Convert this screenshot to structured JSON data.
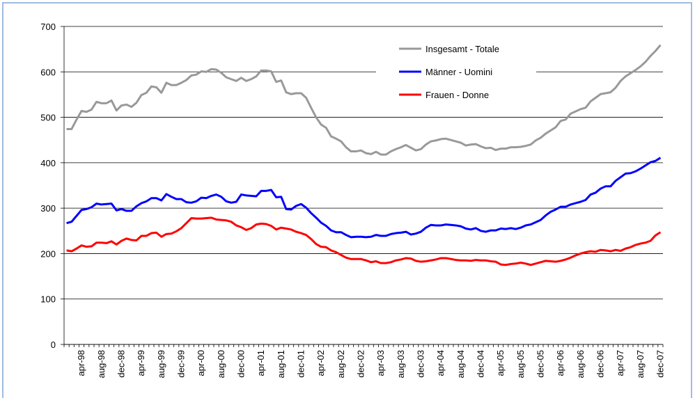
{
  "chart_data": {
    "type": "line",
    "categories": [
      null,
      null,
      null,
      "apr-98",
      null,
      null,
      null,
      "aug-98",
      null,
      null,
      null,
      "dec-98",
      null,
      null,
      null,
      "apr-99",
      null,
      null,
      null,
      "aug-99",
      null,
      null,
      null,
      "dec-99",
      null,
      null,
      null,
      "apr-00",
      null,
      null,
      null,
      "aug-00",
      null,
      null,
      null,
      "dec-00",
      null,
      null,
      null,
      "apr-01",
      null,
      null,
      null,
      "aug-01",
      null,
      null,
      null,
      "dec-01",
      null,
      null,
      null,
      "apr-02",
      null,
      null,
      null,
      "aug-02",
      null,
      null,
      null,
      "dec-02",
      null,
      null,
      null,
      "apr-03",
      null,
      null,
      null,
      "aug-03",
      null,
      null,
      null,
      "dec-03",
      null,
      null,
      null,
      "apr-04",
      null,
      null,
      null,
      "aug-04",
      null,
      null,
      null,
      "dec-04",
      null,
      null,
      null,
      "apr-05",
      null,
      null,
      null,
      "aug-05",
      null,
      null,
      null,
      "dec-05",
      null,
      null,
      null,
      "apr-06",
      null,
      null,
      null,
      "aug-06",
      null,
      null,
      null,
      "dec-06",
      null,
      null,
      null,
      "apr-07",
      null,
      null,
      null,
      "aug-07",
      null,
      null,
      null,
      "dec-07"
    ],
    "series": [
      {
        "name": "Insgesamt - Totale",
        "color": "#999999",
        "values": [
          474,
          474,
          495,
          514,
          512,
          517,
          534,
          531,
          531,
          537,
          515,
          526,
          528,
          523,
          532,
          549,
          554,
          568,
          566,
          554,
          576,
          571,
          571,
          576,
          582,
          592,
          594,
          601,
          600,
          606,
          605,
          598,
          588,
          584,
          580,
          587,
          580,
          584,
          590,
          603,
          603,
          601,
          578,
          581,
          555,
          551,
          553,
          553,
          543,
          521,
          500,
          484,
          477,
          458,
          453,
          447,
          434,
          425,
          425,
          427,
          421,
          419,
          424,
          418,
          418,
          425,
          430,
          434,
          439,
          433,
          427,
          430,
          440,
          447,
          449,
          452,
          453,
          450,
          447,
          444,
          438,
          440,
          441,
          436,
          432,
          433,
          428,
          431,
          431,
          434,
          434,
          435,
          437,
          440,
          449,
          455,
          464,
          471,
          478,
          492,
          495,
          508,
          513,
          518,
          521,
          535,
          543,
          551,
          553,
          555,
          565,
          580,
          590,
          597,
          604,
          612,
          622,
          635,
          646,
          659
        ]
      },
      {
        "name": "Männer - Uomini",
        "color": "#0000ff",
        "values": [
          267,
          270,
          283,
          296,
          298,
          302,
          310,
          308,
          309,
          310,
          295,
          298,
          294,
          294,
          304,
          311,
          315,
          322,
          322,
          317,
          331,
          325,
          320,
          320,
          313,
          312,
          315,
          323,
          322,
          327,
          330,
          325,
          315,
          312,
          314,
          330,
          328,
          327,
          326,
          338,
          338,
          340,
          324,
          325,
          298,
          297,
          305,
          309,
          301,
          289,
          279,
          268,
          261,
          251,
          247,
          247,
          241,
          236,
          237,
          237,
          236,
          237,
          241,
          239,
          239,
          243,
          245,
          246,
          248,
          242,
          244,
          248,
          257,
          263,
          262,
          262,
          264,
          263,
          262,
          260,
          255,
          253,
          256,
          250,
          248,
          251,
          251,
          255,
          254,
          256,
          254,
          257,
          262,
          264,
          269,
          274,
          284,
          292,
          297,
          303,
          303,
          308,
          311,
          314,
          318,
          330,
          334,
          343,
          348,
          348,
          360,
          368,
          376,
          377,
          381,
          387,
          394,
          401,
          404,
          411
        ]
      },
      {
        "name": "Frauen - Donne",
        "color": "#ff0000",
        "values": [
          207,
          205,
          211,
          218,
          215,
          216,
          224,
          224,
          223,
          227,
          220,
          228,
          233,
          230,
          229,
          239,
          239,
          245,
          246,
          237,
          243,
          244,
          249,
          256,
          267,
          278,
          277,
          277,
          278,
          279,
          275,
          274,
          273,
          270,
          262,
          258,
          252,
          256,
          264,
          266,
          265,
          261,
          253,
          257,
          255,
          253,
          248,
          245,
          241,
          232,
          221,
          215,
          214,
          207,
          203,
          197,
          191,
          188,
          188,
          188,
          185,
          181,
          183,
          179,
          179,
          181,
          185,
          187,
          190,
          189,
          184,
          182,
          183,
          185,
          187,
          190,
          190,
          188,
          186,
          185,
          185,
          184,
          186,
          185,
          185,
          183,
          182,
          176,
          175,
          177,
          178,
          180,
          178,
          175,
          178,
          181,
          184,
          183,
          182,
          184,
          187,
          191,
          196,
          200,
          203,
          205,
          204,
          208,
          207,
          205,
          208,
          206,
          211,
          214,
          219,
          222,
          224,
          228,
          240,
          247
        ]
      }
    ],
    "ylim": [
      0,
      700
    ],
    "yticks": [
      0,
      100,
      200,
      300,
      400,
      500,
      600,
      700
    ],
    "grid": true,
    "legend": "top-right"
  }
}
